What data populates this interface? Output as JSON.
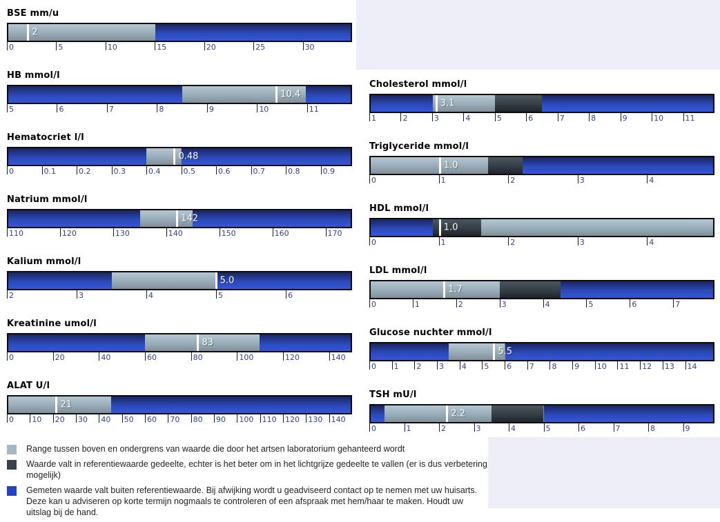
{
  "page": {
    "background": "#ffffff",
    "accent_background": "#eeeef9"
  },
  "colors": {
    "reference_range": "#a3b9c4",
    "suboptimal_range": "#39424b",
    "outside_range": "#2342c6",
    "value_marker": "#ffffff",
    "tick_label": "#2e3f94",
    "bar_border": "#0b0b0b",
    "title_text": "#000000",
    "legend_text": "#222222"
  },
  "chart_data": {
    "type": "gauge",
    "description": "Horizontal bullet gauges of lab results. Light gray = reference range, dark gray = within reference but improvable, blue = outside reference. White marker = measured value.",
    "columns": {
      "left": [
        {
          "analyte": "BSE",
          "unit": "mm/u",
          "title": "BSE mm/u",
          "value": 2,
          "value_label": "2",
          "min": 0,
          "max": 35,
          "ticks": [
            0,
            5,
            10,
            15,
            20,
            25,
            30
          ],
          "segments": [
            {
              "from": 0,
              "to": 15,
              "kind": "reference"
            },
            {
              "from": 15,
              "to": 35,
              "kind": "outside"
            }
          ]
        },
        {
          "analyte": "HB",
          "unit": "mmol/l",
          "title": "HB mmol/l",
          "value": 10.4,
          "value_label": "10.4",
          "min": 5,
          "max": 11.9,
          "ticks": [
            5,
            6,
            7,
            8,
            9,
            10,
            11
          ],
          "segments": [
            {
              "from": 5,
              "to": 8.5,
              "kind": "outside"
            },
            {
              "from": 8.5,
              "to": 11,
              "kind": "reference"
            },
            {
              "from": 11,
              "to": 11.9,
              "kind": "outside"
            }
          ]
        },
        {
          "analyte": "Hematocriet",
          "unit": "l/l",
          "title": "Hematocriet l/l",
          "value": 0.48,
          "value_label": "0.48",
          "min": 0,
          "max": 0.99,
          "ticks": [
            0,
            0.1,
            0.2,
            0.3,
            0.4,
            0.5,
            0.6,
            0.7,
            0.8,
            0.9
          ],
          "segments": [
            {
              "from": 0,
              "to": 0.4,
              "kind": "outside"
            },
            {
              "from": 0.4,
              "to": 0.5,
              "kind": "reference"
            },
            {
              "from": 0.5,
              "to": 0.99,
              "kind": "outside"
            }
          ]
        },
        {
          "analyte": "Natrium",
          "unit": "mmol/l",
          "title": "Natrium mmol/l",
          "value": 142,
          "value_label": "142",
          "min": 110,
          "max": 175,
          "ticks": [
            110,
            120,
            130,
            140,
            150,
            160,
            170
          ],
          "segments": [
            {
              "from": 110,
              "to": 135,
              "kind": "outside"
            },
            {
              "from": 135,
              "to": 145,
              "kind": "reference"
            },
            {
              "from": 145,
              "to": 175,
              "kind": "outside"
            }
          ]
        },
        {
          "analyte": "Kalium",
          "unit": "mmol/l",
          "title": "Kalium mmol/l",
          "value": 5.0,
          "value_label": "5.0",
          "min": 2,
          "max": 6.95,
          "ticks": [
            2,
            3,
            4,
            5,
            6
          ],
          "segments": [
            {
              "from": 2,
              "to": 3.5,
              "kind": "outside"
            },
            {
              "from": 3.5,
              "to": 5,
              "kind": "reference"
            },
            {
              "from": 5,
              "to": 6.95,
              "kind": "outside"
            }
          ]
        },
        {
          "analyte": "Kreatinine",
          "unit": "umol/l",
          "title": "Kreatinine umol/l",
          "value": 83,
          "value_label": "83",
          "min": 0,
          "max": 150,
          "ticks": [
            0,
            20,
            40,
            60,
            80,
            100,
            120,
            140
          ],
          "segments": [
            {
              "from": 0,
              "to": 60,
              "kind": "outside"
            },
            {
              "from": 60,
              "to": 110,
              "kind": "reference"
            },
            {
              "from": 110,
              "to": 150,
              "kind": "outside"
            }
          ]
        },
        {
          "analyte": "ALAT",
          "unit": "U/l",
          "title": "ALAT U/l",
          "value": 21,
          "value_label": "21",
          "min": 0,
          "max": 150,
          "ticks": [
            0,
            10,
            20,
            30,
            40,
            50,
            60,
            70,
            80,
            90,
            100,
            110,
            120,
            130,
            140
          ],
          "segments": [
            {
              "from": 0,
              "to": 45,
              "kind": "reference"
            },
            {
              "from": 45,
              "to": 150,
              "kind": "outside"
            }
          ]
        }
      ],
      "right": [
        {
          "analyte": "Cholesterol",
          "unit": "mmol/l",
          "title": "Cholesterol mmol/l",
          "value": 3.1,
          "value_label": "3.1",
          "min": 1,
          "max": 12,
          "ticks": [
            1,
            2,
            3,
            4,
            5,
            6,
            7,
            8,
            9,
            10,
            11
          ],
          "segments": [
            {
              "from": 1,
              "to": 3,
              "kind": "outside"
            },
            {
              "from": 3,
              "to": 5,
              "kind": "reference"
            },
            {
              "from": 5,
              "to": 6.5,
              "kind": "suboptimal"
            },
            {
              "from": 6.5,
              "to": 12,
              "kind": "outside"
            }
          ]
        },
        {
          "analyte": "Triglyceride",
          "unit": "mmol/l",
          "title": "Triglyceride mmol/l",
          "value": 1.0,
          "value_label": "1.0",
          "min": 0,
          "max": 4.97,
          "ticks": [
            0,
            1,
            2,
            3,
            4
          ],
          "segments": [
            {
              "from": 0,
              "to": 1.7,
              "kind": "reference"
            },
            {
              "from": 1.7,
              "to": 2.2,
              "kind": "suboptimal"
            },
            {
              "from": 2.2,
              "to": 4.97,
              "kind": "outside"
            }
          ]
        },
        {
          "analyte": "HDL",
          "unit": "mmol/l",
          "title": "HDL mmol/l",
          "value": 1.0,
          "value_label": "1.0",
          "min": 0,
          "max": 4.97,
          "ticks": [
            0,
            1,
            2,
            3,
            4
          ],
          "segments": [
            {
              "from": 0,
              "to": 0.9,
              "kind": "outside"
            },
            {
              "from": 0.9,
              "to": 1.6,
              "kind": "suboptimal"
            },
            {
              "from": 1.6,
              "to": 4.97,
              "kind": "reference"
            }
          ]
        },
        {
          "analyte": "LDL",
          "unit": "mmol/l",
          "title": "LDL mmol/l",
          "value": 1.7,
          "value_label": "1.7",
          "min": 0,
          "max": 7.95,
          "ticks": [
            0,
            1,
            2,
            3,
            4,
            5,
            6,
            7
          ],
          "segments": [
            {
              "from": 0,
              "to": 3,
              "kind": "reference"
            },
            {
              "from": 3,
              "to": 4.4,
              "kind": "suboptimal"
            },
            {
              "from": 4.4,
              "to": 7.95,
              "kind": "outside"
            }
          ]
        },
        {
          "analyte": "Glucose nuchter",
          "unit": "mmol/l",
          "title": "Glucose nuchter mmol/l",
          "value": 5.5,
          "value_label": "5.5",
          "min": 0,
          "max": 15.3,
          "ticks": [
            0,
            1,
            2,
            3,
            4,
            5,
            6,
            7,
            8,
            9,
            10,
            11,
            12,
            13,
            14
          ],
          "segments": [
            {
              "from": 0,
              "to": 3.5,
              "kind": "outside"
            },
            {
              "from": 3.5,
              "to": 6,
              "kind": "reference"
            },
            {
              "from": 6,
              "to": 15.3,
              "kind": "outside"
            }
          ]
        },
        {
          "analyte": "TSH",
          "unit": "mU/l",
          "title": "TSH mU/l",
          "value": 2.2,
          "value_label": "2.2",
          "min": 0,
          "max": 9.9,
          "ticks": [
            0,
            1,
            2,
            3,
            4,
            5,
            6,
            7,
            8,
            9
          ],
          "segments": [
            {
              "from": 0,
              "to": 0.4,
              "kind": "outside"
            },
            {
              "from": 0.4,
              "to": 3.5,
              "kind": "reference"
            },
            {
              "from": 3.5,
              "to": 5,
              "kind": "suboptimal"
            },
            {
              "from": 5,
              "to": 9.9,
              "kind": "outside"
            }
          ]
        }
      ]
    }
  },
  "legend": {
    "items": [
      {
        "kind": "reference",
        "color": "#a3b9c4",
        "text": "Range tussen boven en ondergrens van waarde die door het artsen laboratorium gehanteerd wordt"
      },
      {
        "kind": "suboptimal",
        "color": "#39424b",
        "text": "Waarde valt in referentiewaarde gedeelte, echter is het beter om in het lichtgrijze gedeelte te vallen (er is dus verbetering mogelijk)"
      },
      {
        "kind": "outside",
        "color": "#2342c6",
        "text": "Gemeten waarde valt buiten referentiewaarde. Bij afwijking wordt u geadviseerd contact op te nemen met uw huisarts. Deze kan u adviseren op korte termijn nogmaals te controleren of een afspraak met hem/haar te maken. Houdt uw uitslag bij de hand."
      }
    ]
  }
}
